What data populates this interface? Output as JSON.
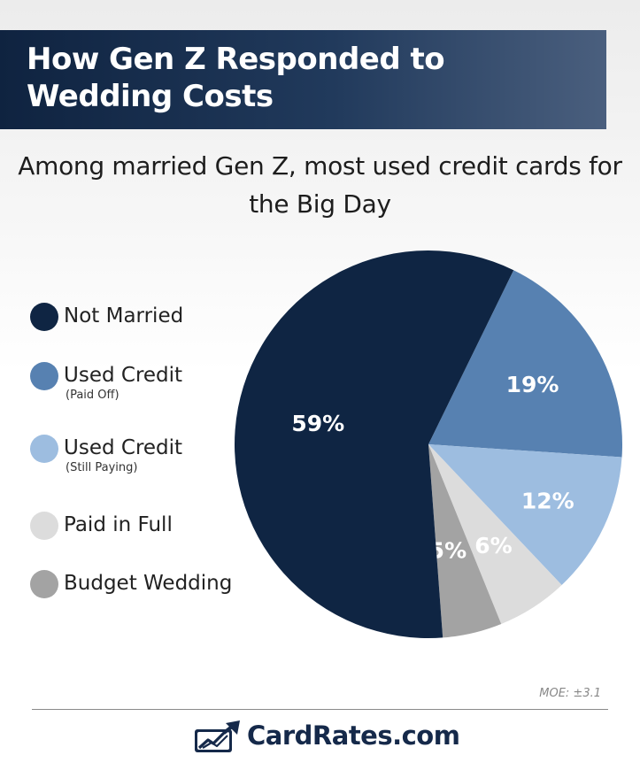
{
  "header": {
    "title": "How Gen Z Responded to Wedding Costs",
    "subtitle": "Among married Gen Z, most used credit cards for the Big Day"
  },
  "chart_data": {
    "type": "pie",
    "categories": [
      "Not Married",
      "Used Credit",
      "Used Credit",
      "Paid in Full",
      "Budget Wedding"
    ],
    "notes": [
      "",
      "(Paid Off)",
      "(Still Paying)",
      "",
      ""
    ],
    "values": [
      59,
      19,
      12,
      6,
      5
    ],
    "value_labels": [
      "59%",
      "19%",
      "12%",
      "6%",
      "5%"
    ],
    "colors": [
      "#0f2543",
      "#5781b1",
      "#9dbde0",
      "#dcdcdc",
      "#a3a3a3"
    ],
    "legend_placement": "left"
  },
  "footnote": "MOE: ±3.1",
  "brand": {
    "name": "CardRates.com",
    "logo_icon": "chart-trend-arrow-icon"
  }
}
